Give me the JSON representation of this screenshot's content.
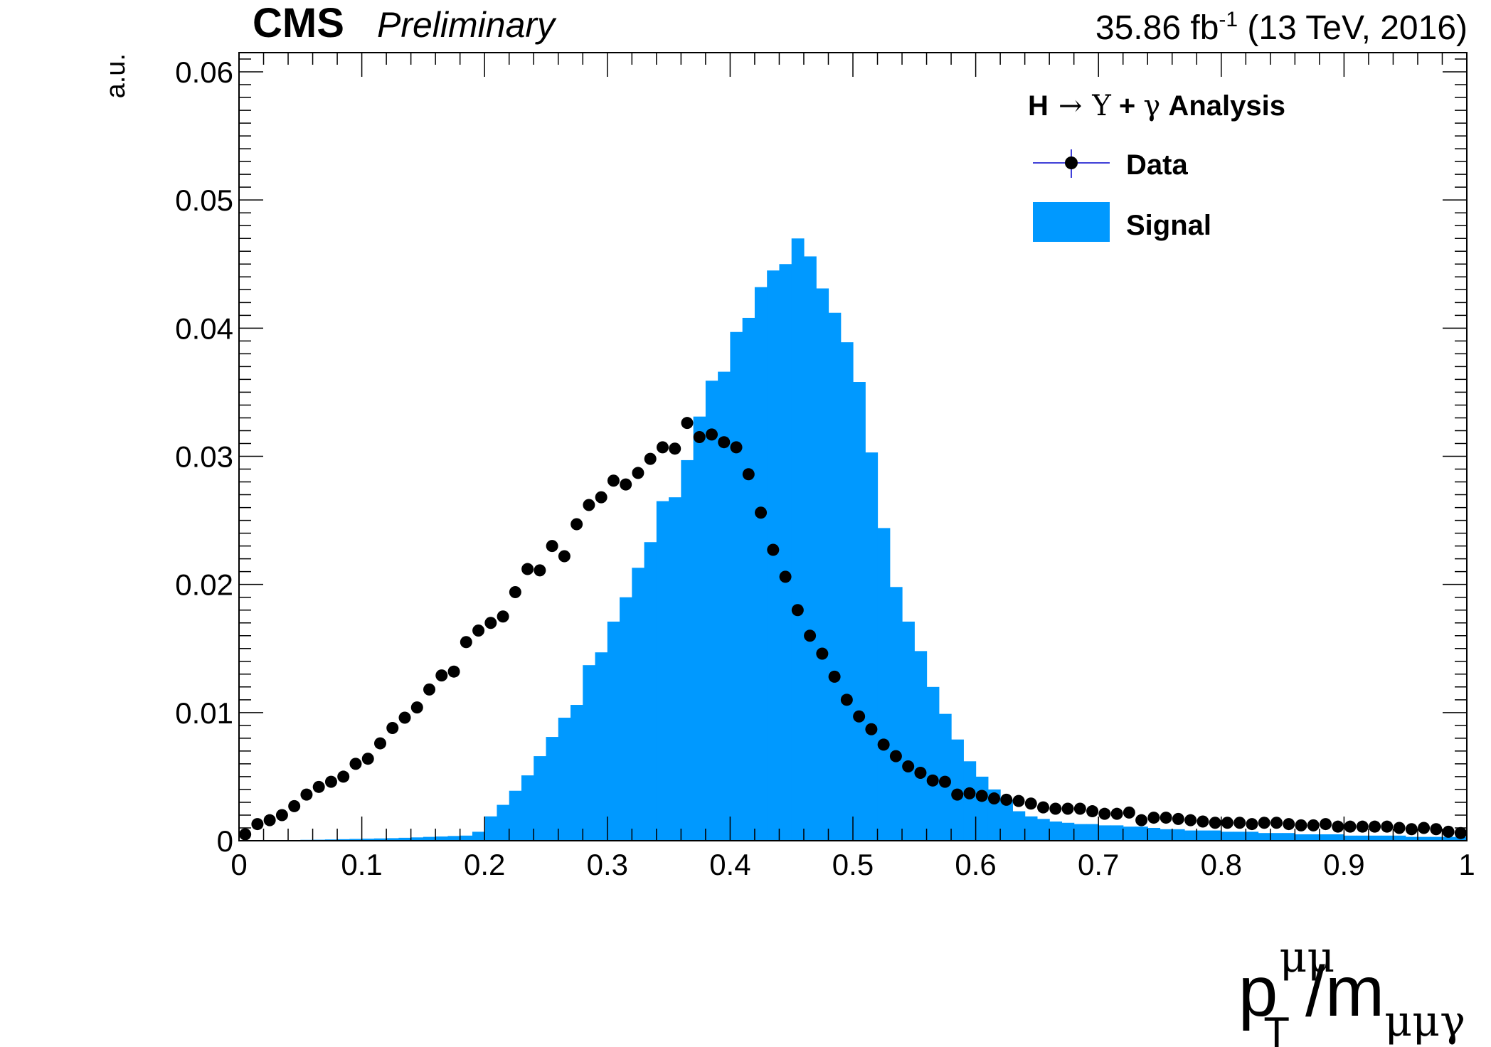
{
  "header": {
    "experiment": "CMS",
    "status": "Preliminary",
    "lumi_value": "35.86 fb",
    "lumi_exp": "-1",
    "lumi_rest": " (13 TeV, 2016)"
  },
  "legend": {
    "title_h": "H",
    "title_arrow": "→",
    "title_upsilon": "Υ",
    "title_plus": " + ",
    "title_gamma": "γ",
    "title_rest": " Analysis",
    "data_label": "Data",
    "signal_label": "Signal"
  },
  "axes": {
    "y_label": "a.u.",
    "x_label_main": "p",
    "x_label_sup": "μμ",
    "x_label_sub": "T",
    "x_label_div": "/m",
    "x_label_sub2": "μμγ"
  },
  "colors": {
    "signal_fill": "#0099ff",
    "data_marker": "#000000",
    "data_error_bar": "#0000cc"
  },
  "chart_data": {
    "type": "bar",
    "xlim": [
      0,
      1
    ],
    "ylim": [
      0,
      0.0615
    ],
    "x_major_ticks": [
      0,
      0.1,
      0.2,
      0.3,
      0.4,
      0.5,
      0.6,
      0.7,
      0.8,
      0.9,
      1
    ],
    "x_tick_labels": [
      "0",
      "0.1",
      "0.2",
      "0.3",
      "0.4",
      "0.5",
      "0.6",
      "0.7",
      "0.8",
      "0.9",
      "1"
    ],
    "y_major_ticks": [
      0,
      0.01,
      0.02,
      0.03,
      0.04,
      0.05,
      0.06
    ],
    "y_tick_labels": [
      "0",
      "0.01",
      "0.02",
      "0.03",
      "0.04",
      "0.05",
      "0.06"
    ],
    "legend_position": "top-right",
    "series": [
      {
        "name": "Signal",
        "kind": "histogram",
        "bin_width": 0.01,
        "values": [
          0,
          0,
          2e-05,
          3e-05,
          5e-05,
          7e-05,
          8e-05,
          0.0001,
          0.00012,
          0.00014,
          0.00016,
          0.00018,
          0.0002,
          0.00023,
          0.00026,
          0.0003,
          0.00033,
          0.00037,
          0.0004,
          0.0007,
          0.0019,
          0.0028,
          0.0039,
          0.0051,
          0.0066,
          0.0081,
          0.0096,
          0.0106,
          0.0137,
          0.0147,
          0.0171,
          0.019,
          0.0213,
          0.0233,
          0.0265,
          0.0268,
          0.0297,
          0.0331,
          0.0359,
          0.0366,
          0.0397,
          0.0408,
          0.0432,
          0.0445,
          0.045,
          0.047,
          0.0456,
          0.0431,
          0.0412,
          0.0389,
          0.0358,
          0.0303,
          0.0244,
          0.0198,
          0.0171,
          0.0148,
          0.012,
          0.0099,
          0.0079,
          0.0062,
          0.005,
          0.004,
          0.0032,
          0.0023,
          0.0019,
          0.0017,
          0.0015,
          0.0014,
          0.0013,
          0.0013,
          0.0012,
          0.0012,
          0.0011,
          0.0011,
          0.001,
          0.0009,
          0.0009,
          0.0008,
          0.0008,
          0.0008,
          0.0007,
          0.0007,
          0.0007,
          0.0006,
          0.0006,
          0.0006,
          0.0005,
          0.0005,
          0.0005,
          0.0005,
          0.0004,
          0.0004,
          0.0004,
          0.0004,
          0.0004,
          0.0003,
          0.0003,
          0.0003,
          0.0003,
          0.0003
        ]
      },
      {
        "name": "Data",
        "kind": "points",
        "bin_width": 0.01,
        "values": [
          0.0005,
          0.0013,
          0.0016,
          0.002,
          0.0027,
          0.0036,
          0.0042,
          0.0046,
          0.005,
          0.006,
          0.0064,
          0.0076,
          0.0088,
          0.0096,
          0.0104,
          0.0118,
          0.0129,
          0.0132,
          0.0155,
          0.0164,
          0.017,
          0.0175,
          0.0194,
          0.0212,
          0.0211,
          0.023,
          0.0222,
          0.0247,
          0.0262,
          0.0268,
          0.0281,
          0.0278,
          0.0287,
          0.0298,
          0.0307,
          0.0306,
          0.0326,
          0.0315,
          0.0317,
          0.0311,
          0.0307,
          0.0286,
          0.0256,
          0.0227,
          0.0206,
          0.018,
          0.016,
          0.0146,
          0.0128,
          0.011,
          0.0097,
          0.0087,
          0.0075,
          0.0066,
          0.0058,
          0.0053,
          0.0047,
          0.0046,
          0.0036,
          0.0037,
          0.0035,
          0.0033,
          0.0032,
          0.0031,
          0.0029,
          0.0026,
          0.0025,
          0.0025,
          0.0025,
          0.0023,
          0.0021,
          0.0021,
          0.0022,
          0.0016,
          0.0018,
          0.0018,
          0.0017,
          0.0016,
          0.0015,
          0.0014,
          0.0014,
          0.0014,
          0.0013,
          0.0014,
          0.0014,
          0.0013,
          0.0012,
          0.0012,
          0.0013,
          0.0011,
          0.0011,
          0.0011,
          0.0011,
          0.0011,
          0.001,
          0.0009,
          0.001,
          0.0009,
          0.0007,
          0.0006
        ]
      }
    ]
  }
}
